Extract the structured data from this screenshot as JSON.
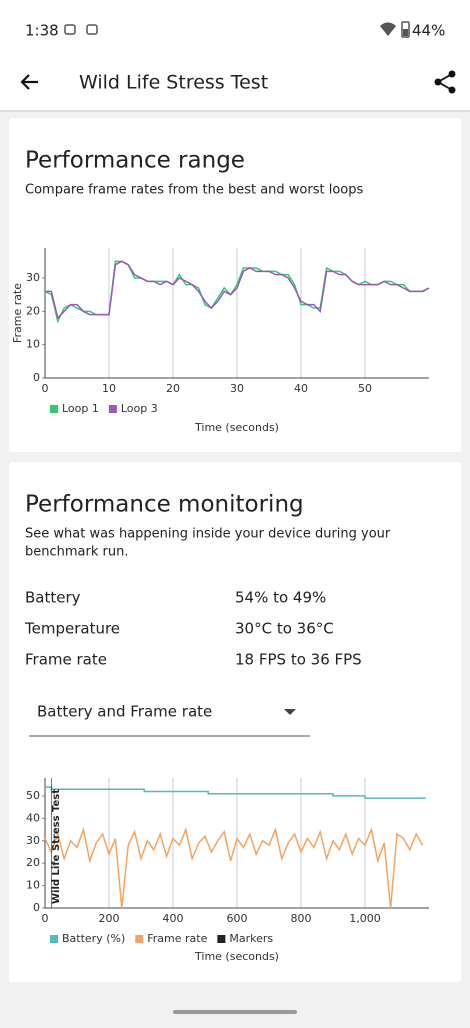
{
  "status_bar": {
    "time": "1:38",
    "battery": "44%"
  },
  "app_bar": {
    "title": "Wild Life Stress Test"
  },
  "range_card": {
    "title": "Performance range",
    "subtitle": "Compare frame rates from the best and worst loops"
  },
  "monitor_card": {
    "title": "Performance monitoring",
    "description": [
      "See what was happening inside your device during your",
      "benchmark run."
    ],
    "stats": [
      {
        "label": "Battery",
        "value": "54% to 49%"
      },
      {
        "label": "Temperature",
        "value": "30°C to 36°C"
      },
      {
        "label": "Frame rate",
        "value": "18 FPS to 36 FPS"
      }
    ],
    "dropdown": "Battery and Frame rate"
  },
  "chart_data": [
    {
      "type": "line",
      "y_label": "Frame rate",
      "x_label": "Time (seconds)",
      "x": [
        0,
        1,
        2,
        3,
        4,
        5,
        6,
        7,
        8,
        9,
        10,
        11,
        12,
        13,
        14,
        15,
        16,
        17,
        18,
        19,
        20,
        21,
        22,
        23,
        24,
        25,
        26,
        27,
        28,
        29,
        30,
        31,
        32,
        33,
        34,
        35,
        36,
        37,
        38,
        39,
        40,
        41,
        42,
        43,
        44,
        45,
        46,
        47,
        48,
        49,
        50,
        51,
        52,
        53,
        54,
        55,
        56,
        57,
        58,
        59,
        60
      ],
      "series": [
        {
          "name": "Loop 1",
          "color": "#2ecc71",
          "values": [
            26,
            25,
            17,
            21,
            22,
            21,
            20,
            20,
            19,
            19,
            19,
            35,
            35,
            34,
            30,
            30,
            29,
            29,
            29,
            29,
            28,
            31,
            28,
            28,
            27,
            22,
            21,
            24,
            27,
            25,
            28,
            33,
            33,
            33,
            32,
            32,
            32,
            31,
            31,
            28,
            22,
            22,
            21,
            21,
            33,
            32,
            32,
            31,
            29,
            28,
            29,
            28,
            28,
            29,
            29,
            28,
            28,
            26,
            26,
            26,
            27
          ]
        },
        {
          "name": "Loop 3",
          "color": "#9b59b6",
          "values": [
            26,
            26,
            18,
            20,
            22,
            22,
            20,
            19,
            19,
            19,
            19,
            34,
            35,
            34,
            31,
            30,
            29,
            29,
            28,
            29,
            28,
            30,
            29,
            28,
            26,
            23,
            21,
            23,
            26,
            25,
            27,
            32,
            33,
            32,
            32,
            32,
            31,
            31,
            30,
            27,
            23,
            22,
            22,
            20,
            32,
            32,
            31,
            31,
            29,
            28,
            28,
            28,
            28,
            29,
            28,
            28,
            27,
            26,
            26,
            26,
            27
          ]
        }
      ],
      "xlim": [
        0,
        60
      ],
      "ylim": [
        0,
        39
      ],
      "xticks": [
        0,
        10,
        20,
        30,
        40,
        50
      ],
      "yticks": [
        0,
        10,
        20,
        30
      ],
      "grid": "x"
    },
    {
      "type": "line",
      "x_label": "Time (seconds)",
      "annotation": "Wild Life Stress Test",
      "series": [
        {
          "name": "Battery (%)",
          "color": "#4dbdbd",
          "step": true,
          "x": [
            0,
            20,
            310,
            510,
            900,
            1000,
            1190
          ],
          "values": [
            54,
            53,
            52,
            51,
            50,
            49,
            49
          ]
        },
        {
          "name": "Frame rate",
          "color": "#f4a460",
          "x": [
            0,
            20,
            40,
            60,
            80,
            100,
            120,
            140,
            160,
            180,
            200,
            220,
            240,
            260,
            280,
            300,
            320,
            340,
            360,
            380,
            400,
            420,
            440,
            460,
            480,
            500,
            520,
            540,
            560,
            580,
            600,
            620,
            640,
            660,
            680,
            700,
            720,
            740,
            760,
            780,
            800,
            820,
            840,
            860,
            880,
            900,
            920,
            940,
            960,
            980,
            1000,
            1020,
            1040,
            1060,
            1080,
            1100,
            1120,
            1140,
            1160,
            1180
          ],
          "values": [
            31,
            25,
            33,
            22,
            30,
            27,
            35,
            21,
            29,
            33,
            24,
            31,
            0,
            28,
            34,
            22,
            30,
            26,
            33,
            23,
            31,
            28,
            35,
            22,
            29,
            32,
            25,
            30,
            34,
            21,
            31,
            27,
            33,
            24,
            30,
            28,
            35,
            22,
            29,
            33,
            25,
            31,
            27,
            34,
            22,
            30,
            26,
            33,
            24,
            31,
            28,
            35,
            21,
            29,
            0,
            33,
            31,
            26,
            33,
            28
          ]
        },
        {
          "name": "Markers",
          "color": "#222222",
          "x": [
            20
          ]
        }
      ],
      "xlim": [
        0,
        1200
      ],
      "ylim": [
        0,
        58
      ],
      "xticks": [
        0,
        200,
        400,
        600,
        800,
        {
          "value": 1000,
          "label": "1,000"
        }
      ],
      "yticks": [
        0,
        10,
        20,
        30,
        40,
        50
      ],
      "grid": "x"
    }
  ]
}
